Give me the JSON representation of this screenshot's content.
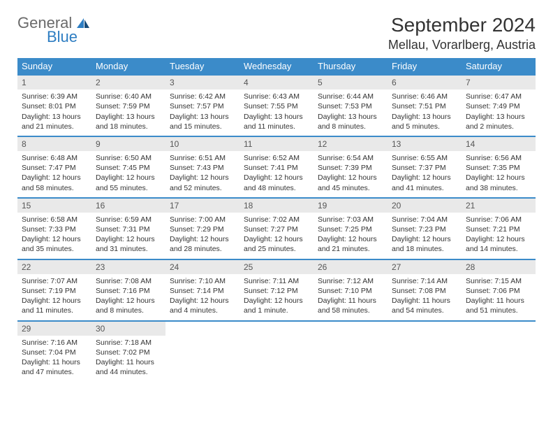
{
  "logo": {
    "part1": "General",
    "part2": "Blue"
  },
  "title": "September 2024",
  "location": "Mellau, Vorarlberg, Austria",
  "colors": {
    "header_bg": "#3b8bc9",
    "header_text": "#ffffff",
    "daynum_bg": "#e9e9e9",
    "daynum_text": "#565656",
    "row_border": "#3b8bc9",
    "logo_gray": "#6a6a6a",
    "logo_blue": "#2d7dc2"
  },
  "weekdays": [
    "Sunday",
    "Monday",
    "Tuesday",
    "Wednesday",
    "Thursday",
    "Friday",
    "Saturday"
  ],
  "weeks": [
    [
      {
        "n": "1",
        "sr": "Sunrise: 6:39 AM",
        "ss": "Sunset: 8:01 PM",
        "dl": "Daylight: 13 hours and 21 minutes."
      },
      {
        "n": "2",
        "sr": "Sunrise: 6:40 AM",
        "ss": "Sunset: 7:59 PM",
        "dl": "Daylight: 13 hours and 18 minutes."
      },
      {
        "n": "3",
        "sr": "Sunrise: 6:42 AM",
        "ss": "Sunset: 7:57 PM",
        "dl": "Daylight: 13 hours and 15 minutes."
      },
      {
        "n": "4",
        "sr": "Sunrise: 6:43 AM",
        "ss": "Sunset: 7:55 PM",
        "dl": "Daylight: 13 hours and 11 minutes."
      },
      {
        "n": "5",
        "sr": "Sunrise: 6:44 AM",
        "ss": "Sunset: 7:53 PM",
        "dl": "Daylight: 13 hours and 8 minutes."
      },
      {
        "n": "6",
        "sr": "Sunrise: 6:46 AM",
        "ss": "Sunset: 7:51 PM",
        "dl": "Daylight: 13 hours and 5 minutes."
      },
      {
        "n": "7",
        "sr": "Sunrise: 6:47 AM",
        "ss": "Sunset: 7:49 PM",
        "dl": "Daylight: 13 hours and 2 minutes."
      }
    ],
    [
      {
        "n": "8",
        "sr": "Sunrise: 6:48 AM",
        "ss": "Sunset: 7:47 PM",
        "dl": "Daylight: 12 hours and 58 minutes."
      },
      {
        "n": "9",
        "sr": "Sunrise: 6:50 AM",
        "ss": "Sunset: 7:45 PM",
        "dl": "Daylight: 12 hours and 55 minutes."
      },
      {
        "n": "10",
        "sr": "Sunrise: 6:51 AM",
        "ss": "Sunset: 7:43 PM",
        "dl": "Daylight: 12 hours and 52 minutes."
      },
      {
        "n": "11",
        "sr": "Sunrise: 6:52 AM",
        "ss": "Sunset: 7:41 PM",
        "dl": "Daylight: 12 hours and 48 minutes."
      },
      {
        "n": "12",
        "sr": "Sunrise: 6:54 AM",
        "ss": "Sunset: 7:39 PM",
        "dl": "Daylight: 12 hours and 45 minutes."
      },
      {
        "n": "13",
        "sr": "Sunrise: 6:55 AM",
        "ss": "Sunset: 7:37 PM",
        "dl": "Daylight: 12 hours and 41 minutes."
      },
      {
        "n": "14",
        "sr": "Sunrise: 6:56 AM",
        "ss": "Sunset: 7:35 PM",
        "dl": "Daylight: 12 hours and 38 minutes."
      }
    ],
    [
      {
        "n": "15",
        "sr": "Sunrise: 6:58 AM",
        "ss": "Sunset: 7:33 PM",
        "dl": "Daylight: 12 hours and 35 minutes."
      },
      {
        "n": "16",
        "sr": "Sunrise: 6:59 AM",
        "ss": "Sunset: 7:31 PM",
        "dl": "Daylight: 12 hours and 31 minutes."
      },
      {
        "n": "17",
        "sr": "Sunrise: 7:00 AM",
        "ss": "Sunset: 7:29 PM",
        "dl": "Daylight: 12 hours and 28 minutes."
      },
      {
        "n": "18",
        "sr": "Sunrise: 7:02 AM",
        "ss": "Sunset: 7:27 PM",
        "dl": "Daylight: 12 hours and 25 minutes."
      },
      {
        "n": "19",
        "sr": "Sunrise: 7:03 AM",
        "ss": "Sunset: 7:25 PM",
        "dl": "Daylight: 12 hours and 21 minutes."
      },
      {
        "n": "20",
        "sr": "Sunrise: 7:04 AM",
        "ss": "Sunset: 7:23 PM",
        "dl": "Daylight: 12 hours and 18 minutes."
      },
      {
        "n": "21",
        "sr": "Sunrise: 7:06 AM",
        "ss": "Sunset: 7:21 PM",
        "dl": "Daylight: 12 hours and 14 minutes."
      }
    ],
    [
      {
        "n": "22",
        "sr": "Sunrise: 7:07 AM",
        "ss": "Sunset: 7:19 PM",
        "dl": "Daylight: 12 hours and 11 minutes."
      },
      {
        "n": "23",
        "sr": "Sunrise: 7:08 AM",
        "ss": "Sunset: 7:16 PM",
        "dl": "Daylight: 12 hours and 8 minutes."
      },
      {
        "n": "24",
        "sr": "Sunrise: 7:10 AM",
        "ss": "Sunset: 7:14 PM",
        "dl": "Daylight: 12 hours and 4 minutes."
      },
      {
        "n": "25",
        "sr": "Sunrise: 7:11 AM",
        "ss": "Sunset: 7:12 PM",
        "dl": "Daylight: 12 hours and 1 minute."
      },
      {
        "n": "26",
        "sr": "Sunrise: 7:12 AM",
        "ss": "Sunset: 7:10 PM",
        "dl": "Daylight: 11 hours and 58 minutes."
      },
      {
        "n": "27",
        "sr": "Sunrise: 7:14 AM",
        "ss": "Sunset: 7:08 PM",
        "dl": "Daylight: 11 hours and 54 minutes."
      },
      {
        "n": "28",
        "sr": "Sunrise: 7:15 AM",
        "ss": "Sunset: 7:06 PM",
        "dl": "Daylight: 11 hours and 51 minutes."
      }
    ],
    [
      {
        "n": "29",
        "sr": "Sunrise: 7:16 AM",
        "ss": "Sunset: 7:04 PM",
        "dl": "Daylight: 11 hours and 47 minutes."
      },
      {
        "n": "30",
        "sr": "Sunrise: 7:18 AM",
        "ss": "Sunset: 7:02 PM",
        "dl": "Daylight: 11 hours and 44 minutes."
      },
      null,
      null,
      null,
      null,
      null
    ]
  ]
}
